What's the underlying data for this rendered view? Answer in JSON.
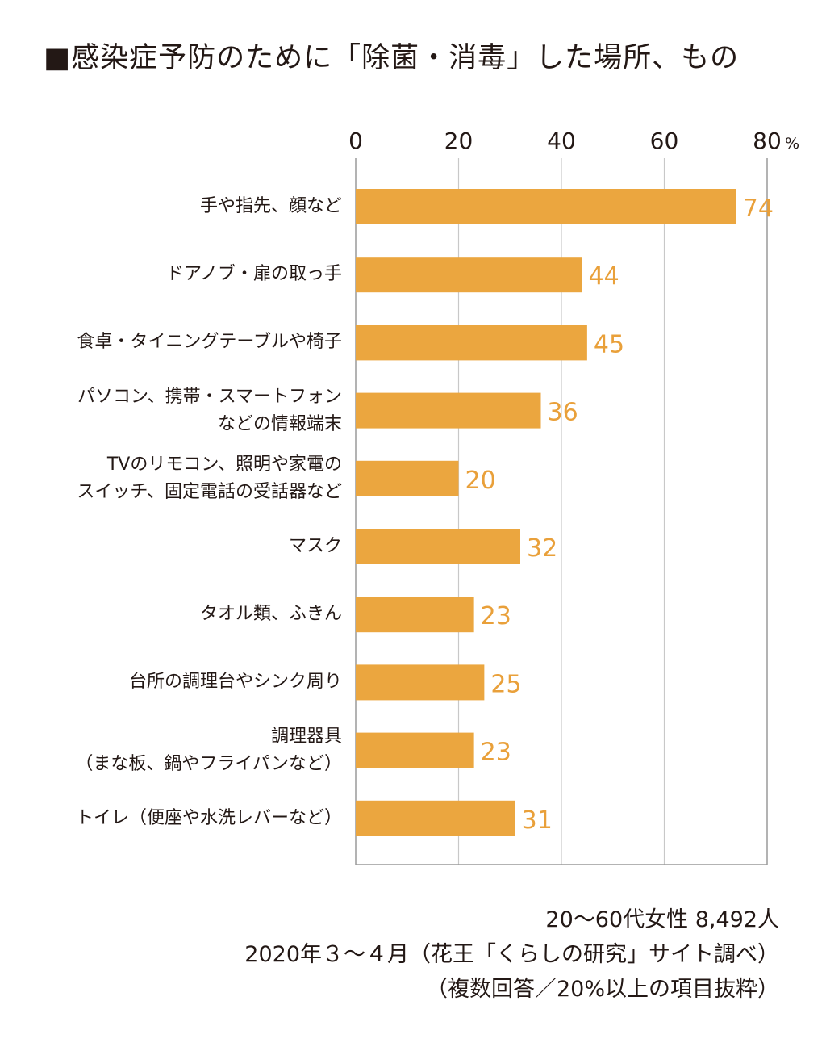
{
  "title": "■感染症予防のために「除菌・消毒」した場所、もの",
  "chart_data": {
    "type": "bar",
    "orientation": "horizontal",
    "title": "■感染症予防のために「除菌・消毒」した場所、もの",
    "unit": "%",
    "xlim": [
      0,
      80
    ],
    "ticks": [
      0,
      20,
      40,
      60,
      80
    ],
    "tick_labels": [
      "0",
      "20",
      "40",
      "60",
      "80"
    ],
    "grid": true,
    "bar_color": "#EBA63F",
    "label_color": "#E9A03A",
    "categories": [
      [
        "手や指先、顔など"
      ],
      [
        "ドアノブ・扉の取っ手"
      ],
      [
        "食卓・タイニングテーブルや椅子"
      ],
      [
        "パソコン、携帯・スマートフォン",
        "などの情報端末"
      ],
      [
        "TVのリモコン、照明や家電の",
        "スイッチ、固定電話の受話器など"
      ],
      [
        "マスク"
      ],
      [
        "タオル類、ふきん"
      ],
      [
        "台所の調理台やシンク周り"
      ],
      [
        "調理器具",
        "（まな板、鍋やフライパンなど）"
      ],
      [
        "トイレ（便座や水洗レバーなど）"
      ]
    ],
    "values": [
      74,
      44,
      45,
      36,
      20,
      32,
      23,
      25,
      23,
      31
    ]
  },
  "notes": [
    "20〜60代女性 8,492人",
    "2020年３〜４月（花王「くらしの研究」サイト調べ）",
    "（複数回答／20%以上の項目抜粋）"
  ]
}
